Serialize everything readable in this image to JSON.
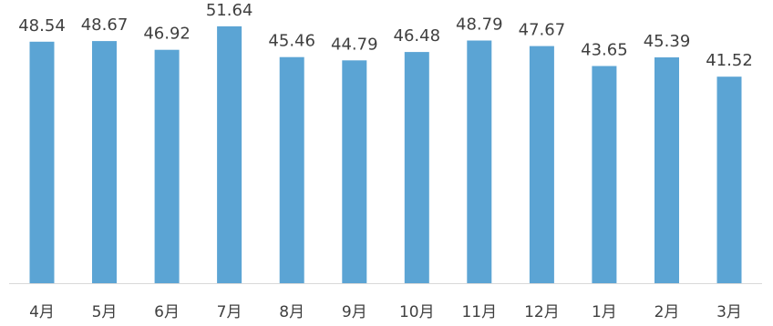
{
  "chart_data": {
    "type": "bar",
    "categories": [
      "4月",
      "5月",
      "6月",
      "7月",
      "8月",
      "9月",
      "10月",
      "11月",
      "12月",
      "1月",
      "2月",
      "3月"
    ],
    "values": [
      48.54,
      48.67,
      46.92,
      51.64,
      45.46,
      44.79,
      46.48,
      48.79,
      47.67,
      43.65,
      45.39,
      41.52
    ],
    "value_labels": [
      "48.54",
      "48.67",
      "46.92",
      "51.64",
      "45.46",
      "44.79",
      "46.48",
      "48.79",
      "47.67",
      "43.65",
      "45.39",
      "41.52"
    ],
    "title": "",
    "xlabel": "",
    "ylabel": "",
    "ylim": [
      0,
      54
    ],
    "grid": false,
    "legend": "none",
    "colors": {
      "bar": "#5ba4d4",
      "baseline": "#d9d9d9",
      "text": "#404040"
    }
  }
}
